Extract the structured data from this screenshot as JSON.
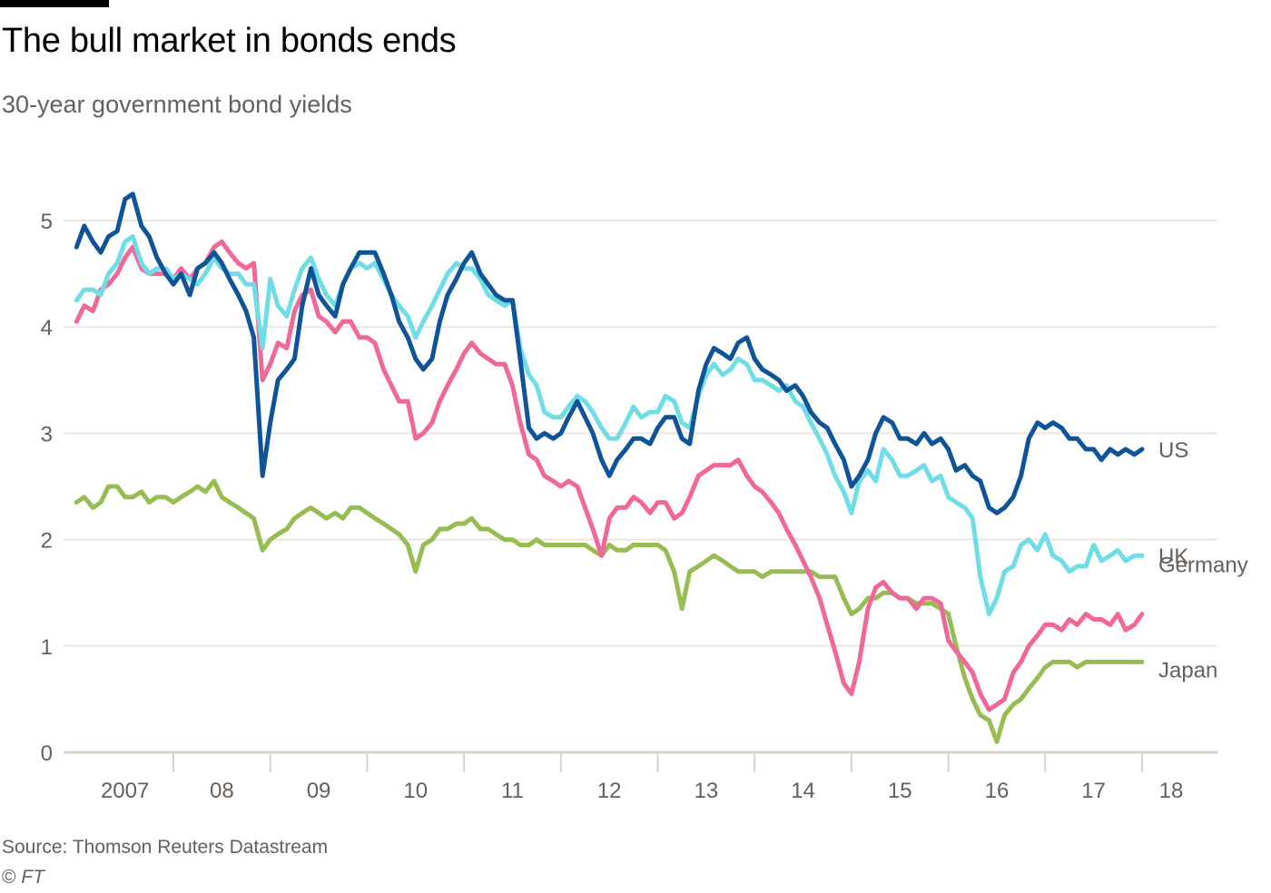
{
  "header": {
    "title": "The bull market in bonds ends",
    "subtitle": "30-year government bond yields"
  },
  "footer": {
    "source": "Source: Thomson Reuters Datastream",
    "copyright_symbol": "©",
    "copyright_org": "FT"
  },
  "chart_data": {
    "type": "line",
    "title": "The bull market in bonds ends",
    "subtitle": "30-year government bond yields",
    "xlabel": "",
    "ylabel": "",
    "ylim": [
      0,
      5.5
    ],
    "xlim": [
      2007.0,
      2018.1
    ],
    "yticks": [
      0,
      1,
      2,
      3,
      4,
      5
    ],
    "ytick_labels": [
      "0",
      "1",
      "2",
      "3",
      "4",
      "5"
    ],
    "xtick_positions": [
      2008,
      2009,
      2010,
      2011,
      2012,
      2013,
      2014,
      2015,
      2016,
      2017,
      2018
    ],
    "xcategory_labels": [
      {
        "label": "2007",
        "at": 2007.5
      },
      {
        "label": "08",
        "at": 2008.5
      },
      {
        "label": "09",
        "at": 2009.5
      },
      {
        "label": "10",
        "at": 2010.5
      },
      {
        "label": "11",
        "at": 2011.5
      },
      {
        "label": "12",
        "at": 2012.5
      },
      {
        "label": "13",
        "at": 2013.5
      },
      {
        "label": "14",
        "at": 2014.5
      },
      {
        "label": "15",
        "at": 2015.5
      },
      {
        "label": "16",
        "at": 2016.5
      },
      {
        "label": "17",
        "at": 2017.5
      },
      {
        "label": "18",
        "at": 2018.3
      }
    ],
    "grid": true,
    "legend": "direct-labels-right",
    "x": [
      2007.0,
      2007.08,
      2007.17,
      2007.25,
      2007.33,
      2007.42,
      2007.5,
      2007.58,
      2007.67,
      2007.75,
      2007.83,
      2007.92,
      2008.0,
      2008.08,
      2008.17,
      2008.25,
      2008.33,
      2008.42,
      2008.5,
      2008.58,
      2008.67,
      2008.75,
      2008.83,
      2008.92,
      2009.0,
      2009.08,
      2009.17,
      2009.25,
      2009.33,
      2009.42,
      2009.5,
      2009.58,
      2009.67,
      2009.75,
      2009.83,
      2009.92,
      2010.0,
      2010.08,
      2010.17,
      2010.25,
      2010.33,
      2010.42,
      2010.5,
      2010.58,
      2010.67,
      2010.75,
      2010.83,
      2010.92,
      2011.0,
      2011.08,
      2011.17,
      2011.25,
      2011.33,
      2011.42,
      2011.5,
      2011.58,
      2011.67,
      2011.75,
      2011.83,
      2011.92,
      2012.0,
      2012.08,
      2012.17,
      2012.25,
      2012.33,
      2012.42,
      2012.5,
      2012.58,
      2012.67,
      2012.75,
      2012.83,
      2012.92,
      2013.0,
      2013.08,
      2013.17,
      2013.25,
      2013.33,
      2013.42,
      2013.5,
      2013.58,
      2013.67,
      2013.75,
      2013.83,
      2013.92,
      2014.0,
      2014.08,
      2014.17,
      2014.25,
      2014.33,
      2014.42,
      2014.5,
      2014.58,
      2014.67,
      2014.75,
      2014.83,
      2014.92,
      2015.0,
      2015.08,
      2015.17,
      2015.25,
      2015.33,
      2015.42,
      2015.5,
      2015.58,
      2015.67,
      2015.75,
      2015.83,
      2015.92,
      2016.0,
      2016.08,
      2016.17,
      2016.25,
      2016.33,
      2016.42,
      2016.5,
      2016.58,
      2016.67,
      2016.75,
      2016.83,
      2016.92,
      2017.0,
      2017.08,
      2017.17,
      2017.25,
      2017.33,
      2017.42,
      2017.5,
      2017.58,
      2017.67,
      2017.75,
      2017.83,
      2017.92,
      2018.0
    ],
    "series": [
      {
        "name": "US",
        "color": "#0f5499",
        "values": [
          4.75,
          4.95,
          4.8,
          4.7,
          4.85,
          4.9,
          5.2,
          5.25,
          4.95,
          4.85,
          4.65,
          4.5,
          4.4,
          4.5,
          4.3,
          4.55,
          4.6,
          4.7,
          4.6,
          4.45,
          4.3,
          4.15,
          3.9,
          2.6,
          3.1,
          3.5,
          3.6,
          3.7,
          4.2,
          4.55,
          4.3,
          4.2,
          4.1,
          4.4,
          4.55,
          4.7,
          4.7,
          4.7,
          4.5,
          4.3,
          4.05,
          3.9,
          3.7,
          3.6,
          3.7,
          4.05,
          4.3,
          4.45,
          4.6,
          4.7,
          4.5,
          4.4,
          4.3,
          4.25,
          4.25,
          3.7,
          3.05,
          2.95,
          3.0,
          2.95,
          3.0,
          3.15,
          3.3,
          3.15,
          3.0,
          2.75,
          2.6,
          2.75,
          2.85,
          2.95,
          2.95,
          2.9,
          3.05,
          3.15,
          3.15,
          2.95,
          2.9,
          3.4,
          3.65,
          3.8,
          3.75,
          3.7,
          3.85,
          3.9,
          3.7,
          3.6,
          3.55,
          3.5,
          3.4,
          3.45,
          3.35,
          3.2,
          3.1,
          3.05,
          2.9,
          2.75,
          2.5,
          2.6,
          2.75,
          3.0,
          3.15,
          3.1,
          2.95,
          2.95,
          2.9,
          3.0,
          2.9,
          2.95,
          2.85,
          2.65,
          2.7,
          2.6,
          2.55,
          2.3,
          2.25,
          2.3,
          2.4,
          2.6,
          2.95,
          3.1,
          3.05,
          3.1,
          3.05,
          2.95,
          2.95,
          2.85,
          2.85,
          2.75,
          2.85,
          2.8,
          2.85,
          2.8,
          2.85
        ]
      },
      {
        "name": "UK",
        "color": "#6fdde5",
        "values": [
          4.25,
          4.35,
          4.35,
          4.3,
          4.5,
          4.6,
          4.8,
          4.85,
          4.6,
          4.5,
          4.55,
          4.55,
          4.45,
          4.5,
          4.45,
          4.4,
          4.5,
          4.65,
          4.55,
          4.5,
          4.5,
          4.4,
          4.4,
          3.8,
          4.45,
          4.2,
          4.1,
          4.35,
          4.55,
          4.65,
          4.45,
          4.3,
          4.2,
          4.4,
          4.55,
          4.6,
          4.55,
          4.6,
          4.45,
          4.3,
          4.2,
          4.1,
          3.9,
          4.05,
          4.2,
          4.35,
          4.5,
          4.6,
          4.55,
          4.55,
          4.45,
          4.3,
          4.25,
          4.2,
          4.25,
          3.8,
          3.55,
          3.45,
          3.2,
          3.15,
          3.15,
          3.25,
          3.35,
          3.3,
          3.2,
          3.05,
          2.95,
          2.95,
          3.1,
          3.25,
          3.15,
          3.2,
          3.2,
          3.35,
          3.3,
          3.1,
          3.05,
          3.35,
          3.55,
          3.65,
          3.55,
          3.6,
          3.7,
          3.65,
          3.5,
          3.5,
          3.45,
          3.4,
          3.45,
          3.3,
          3.25,
          3.1,
          2.95,
          2.8,
          2.6,
          2.45,
          2.25,
          2.55,
          2.65,
          2.55,
          2.85,
          2.75,
          2.6,
          2.6,
          2.65,
          2.7,
          2.55,
          2.6,
          2.4,
          2.35,
          2.3,
          2.2,
          1.65,
          1.3,
          1.45,
          1.7,
          1.75,
          1.95,
          2.0,
          1.9,
          2.05,
          1.85,
          1.8,
          1.7,
          1.75,
          1.75,
          1.95,
          1.8,
          1.85,
          1.9,
          1.8,
          1.85,
          1.85
        ]
      },
      {
        "name": "Germany",
        "color": "#f2679a",
        "values": [
          4.05,
          4.2,
          4.15,
          4.35,
          4.4,
          4.5,
          4.65,
          4.75,
          4.55,
          4.5,
          4.5,
          4.5,
          4.45,
          4.55,
          4.45,
          4.55,
          4.6,
          4.75,
          4.8,
          4.7,
          4.6,
          4.55,
          4.6,
          3.5,
          3.65,
          3.85,
          3.8,
          4.15,
          4.3,
          4.35,
          4.1,
          4.05,
          3.95,
          4.05,
          4.05,
          3.9,
          3.9,
          3.85,
          3.6,
          3.45,
          3.3,
          3.3,
          2.95,
          3.0,
          3.1,
          3.3,
          3.45,
          3.6,
          3.75,
          3.85,
          3.75,
          3.7,
          3.65,
          3.65,
          3.45,
          3.1,
          2.8,
          2.75,
          2.6,
          2.55,
          2.5,
          2.55,
          2.5,
          2.3,
          2.1,
          1.85,
          2.2,
          2.3,
          2.3,
          2.4,
          2.35,
          2.25,
          2.35,
          2.35,
          2.2,
          2.25,
          2.4,
          2.6,
          2.65,
          2.7,
          2.7,
          2.7,
          2.75,
          2.6,
          2.5,
          2.45,
          2.35,
          2.25,
          2.1,
          1.95,
          1.8,
          1.65,
          1.45,
          1.2,
          0.95,
          0.65,
          0.55,
          0.85,
          1.35,
          1.55,
          1.6,
          1.5,
          1.45,
          1.45,
          1.35,
          1.45,
          1.45,
          1.4,
          1.05,
          0.95,
          0.85,
          0.75,
          0.55,
          0.4,
          0.45,
          0.5,
          0.75,
          0.85,
          1.0,
          1.1,
          1.2,
          1.2,
          1.15,
          1.25,
          1.2,
          1.3,
          1.25,
          1.25,
          1.2,
          1.3,
          1.15,
          1.2,
          1.3
        ]
      },
      {
        "name": "Japan",
        "color": "#96bc52",
        "values": [
          2.35,
          2.4,
          2.3,
          2.35,
          2.5,
          2.5,
          2.4,
          2.4,
          2.45,
          2.35,
          2.4,
          2.4,
          2.35,
          2.4,
          2.45,
          2.5,
          2.45,
          2.55,
          2.4,
          2.35,
          2.3,
          2.25,
          2.2,
          1.9,
          2.0,
          2.05,
          2.1,
          2.2,
          2.25,
          2.3,
          2.25,
          2.2,
          2.25,
          2.2,
          2.3,
          2.3,
          2.25,
          2.2,
          2.15,
          2.1,
          2.05,
          1.95,
          1.7,
          1.95,
          2.0,
          2.1,
          2.1,
          2.15,
          2.15,
          2.2,
          2.1,
          2.1,
          2.05,
          2.0,
          2.0,
          1.95,
          1.95,
          2.0,
          1.95,
          1.95,
          1.95,
          1.95,
          1.95,
          1.95,
          1.9,
          1.85,
          1.95,
          1.9,
          1.9,
          1.95,
          1.95,
          1.95,
          1.95,
          1.9,
          1.7,
          1.35,
          1.7,
          1.75,
          1.8,
          1.85,
          1.8,
          1.75,
          1.7,
          1.7,
          1.7,
          1.65,
          1.7,
          1.7,
          1.7,
          1.7,
          1.7,
          1.7,
          1.65,
          1.65,
          1.65,
          1.45,
          1.3,
          1.35,
          1.45,
          1.45,
          1.5,
          1.5,
          1.45,
          1.45,
          1.4,
          1.4,
          1.4,
          1.35,
          1.3,
          1.0,
          0.7,
          0.5,
          0.35,
          0.3,
          0.1,
          0.35,
          0.45,
          0.5,
          0.6,
          0.7,
          0.8,
          0.85,
          0.85,
          0.85,
          0.8,
          0.85,
          0.85,
          0.85,
          0.85,
          0.85,
          0.85,
          0.85,
          0.85
        ]
      }
    ]
  }
}
